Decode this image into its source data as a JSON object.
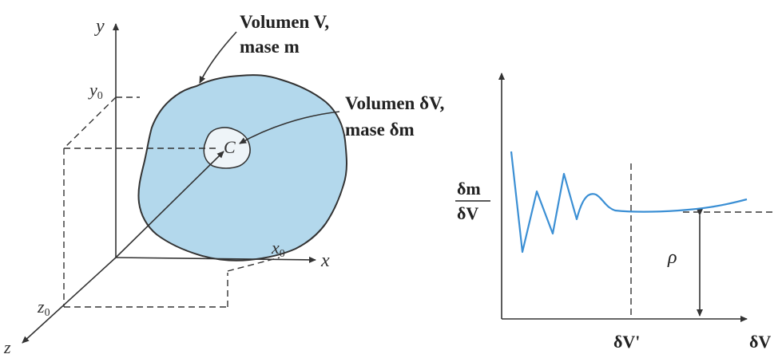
{
  "left_figure": {
    "axis_y": "y",
    "axis_x": "x",
    "axis_z": "z",
    "y0": "y",
    "y0_sub": "0",
    "x0": "x",
    "x0_sub": "0",
    "z0": "z",
    "z0_sub": "0",
    "point_label": "C",
    "volume_label_line1": "Volumen V,",
    "volume_label_line2": "mase m",
    "small_volume_line1": "Volumen δV,",
    "small_volume_line2": "mase δm"
  },
  "right_figure": {
    "y_label_numerator": "δm",
    "y_label_denominator": "δV",
    "x_label": "δV",
    "marker_label": "δV'",
    "rho_label": "ρ"
  },
  "colors": {
    "region_fill": "#b3d8ec",
    "inner_fill": "#eef4f8",
    "curve": "#3b8fd4",
    "ink": "#333333"
  }
}
